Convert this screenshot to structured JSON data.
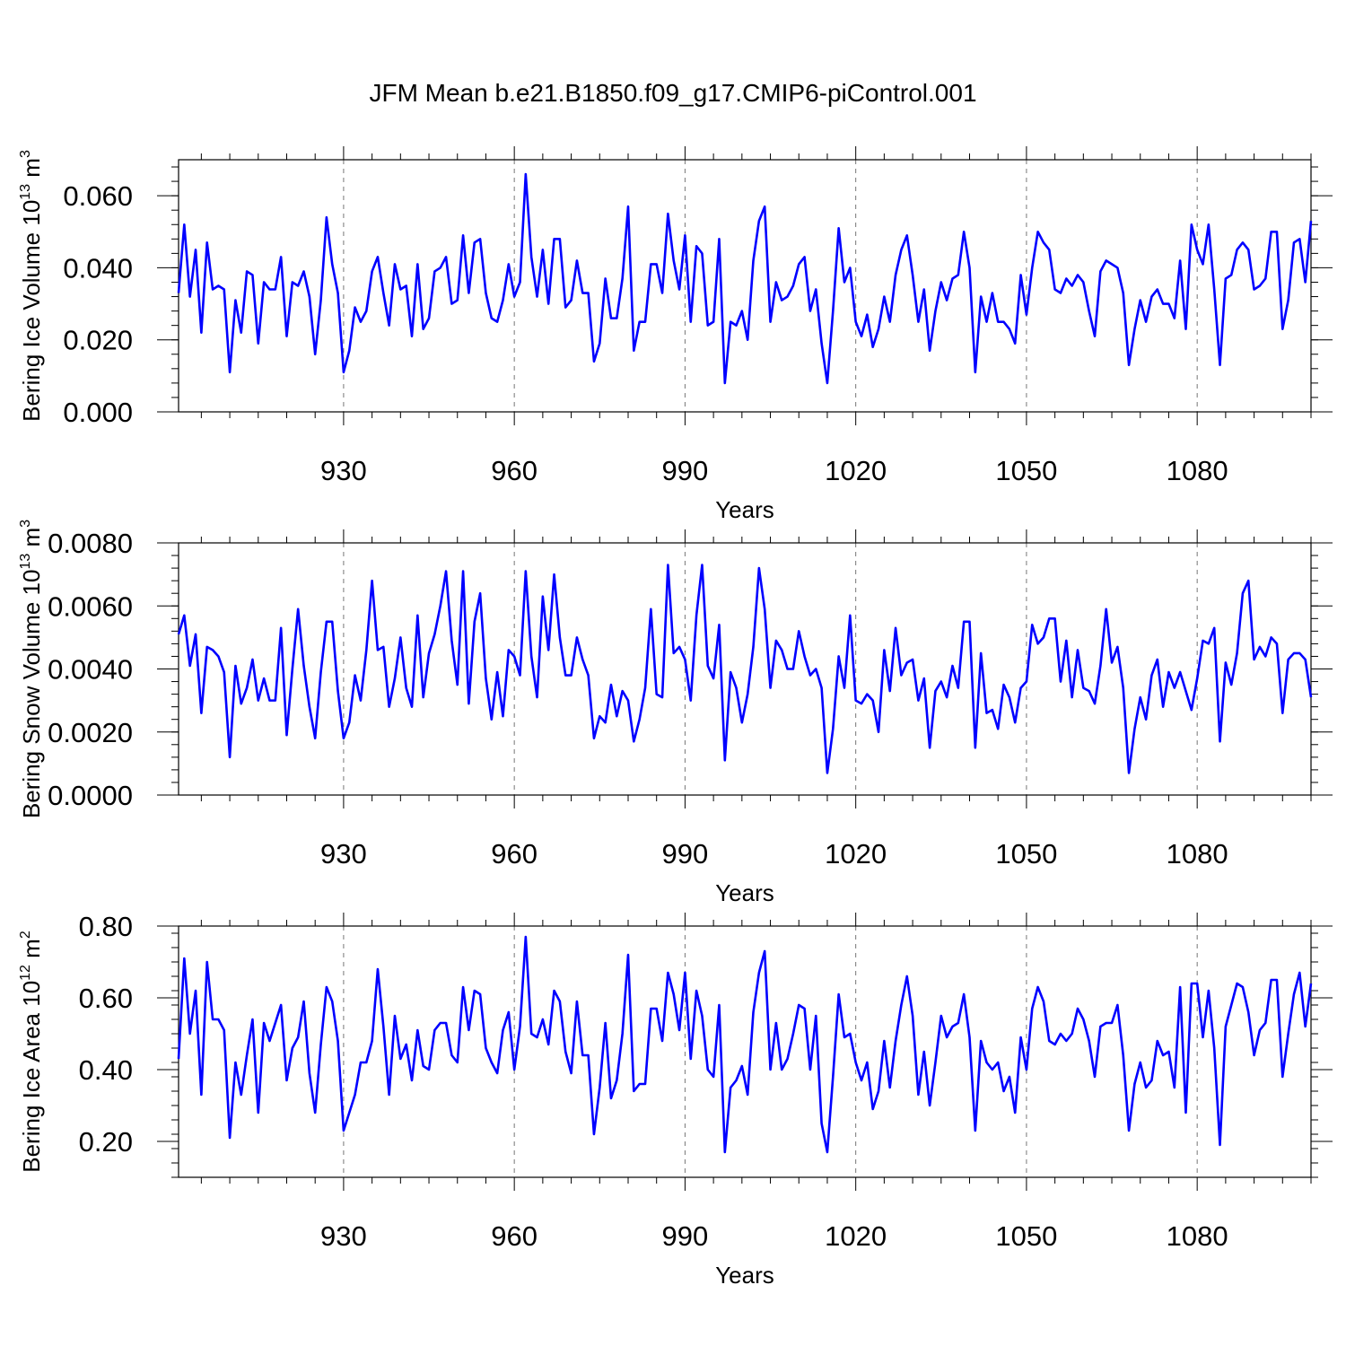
{
  "title": "JFM Mean b.e21.B1850.f09_g17.CMIP6-piControl.001",
  "line_color": "#0000ff",
  "chart_data": [
    {
      "type": "line",
      "ylabel": "Bering Ice Volume 10",
      "ylabel_exp": "13",
      "ylabel_unit": " m",
      "ylabel_unit_exp": "3",
      "xlabel": "Years",
      "xlim": [
        901,
        1100
      ],
      "ylim": [
        0,
        0.07
      ],
      "xticks": [
        930,
        960,
        990,
        1020,
        1050,
        1080
      ],
      "xtick_labels": [
        "930",
        "960",
        "990",
        "1020",
        "1050",
        "1080"
      ],
      "yticks": [
        0,
        0.02,
        0.04,
        0.06
      ],
      "ytick_labels": [
        "0.000",
        "0.020",
        "0.040",
        "0.060"
      ],
      "x_start": 901,
      "values": [
        0.033,
        0.052,
        0.032,
        0.045,
        0.022,
        0.047,
        0.034,
        0.035,
        0.034,
        0.011,
        0.031,
        0.022,
        0.039,
        0.038,
        0.019,
        0.036,
        0.034,
        0.034,
        0.043,
        0.021,
        0.036,
        0.035,
        0.039,
        0.032,
        0.016,
        0.031,
        0.054,
        0.041,
        0.033,
        0.011,
        0.017,
        0.029,
        0.025,
        0.028,
        0.039,
        0.043,
        0.033,
        0.024,
        0.041,
        0.034,
        0.035,
        0.021,
        0.041,
        0.023,
        0.026,
        0.039,
        0.04,
        0.043,
        0.03,
        0.031,
        0.049,
        0.033,
        0.047,
        0.048,
        0.033,
        0.026,
        0.025,
        0.031,
        0.041,
        0.032,
        0.036,
        0.066,
        0.043,
        0.032,
        0.045,
        0.03,
        0.048,
        0.048,
        0.029,
        0.031,
        0.042,
        0.033,
        0.033,
        0.014,
        0.019,
        0.037,
        0.026,
        0.026,
        0.037,
        0.057,
        0.017,
        0.025,
        0.025,
        0.041,
        0.041,
        0.033,
        0.055,
        0.042,
        0.034,
        0.049,
        0.025,
        0.046,
        0.044,
        0.024,
        0.025,
        0.048,
        0.008,
        0.025,
        0.024,
        0.028,
        0.02,
        0.042,
        0.053,
        0.057,
        0.025,
        0.036,
        0.031,
        0.032,
        0.035,
        0.041,
        0.043,
        0.028,
        0.034,
        0.019,
        0.008,
        0.028,
        0.051,
        0.036,
        0.04,
        0.025,
        0.021,
        0.027,
        0.018,
        0.023,
        0.032,
        0.025,
        0.038,
        0.045,
        0.049,
        0.038,
        0.025,
        0.034,
        0.017,
        0.028,
        0.036,
        0.031,
        0.037,
        0.038,
        0.05,
        0.04,
        0.011,
        0.032,
        0.025,
        0.033,
        0.025,
        0.025,
        0.023,
        0.019,
        0.038,
        0.027,
        0.04,
        0.05,
        0.047,
        0.045,
        0.034,
        0.033,
        0.037,
        0.035,
        0.038,
        0.036,
        0.028,
        0.021,
        0.039,
        0.042,
        0.041,
        0.04,
        0.033,
        0.013,
        0.023,
        0.031,
        0.025,
        0.032,
        0.034,
        0.03,
        0.03,
        0.026,
        0.042,
        0.023,
        0.052,
        0.045,
        0.041,
        0.052,
        0.034,
        0.013,
        0.037,
        0.038,
        0.045,
        0.047,
        0.045,
        0.034,
        0.035,
        0.037,
        0.05,
        0.05,
        0.023,
        0.031,
        0.047,
        0.048,
        0.036,
        0.053
      ]
    },
    {
      "type": "line",
      "ylabel": "Bering Snow Volume 10",
      "ylabel_exp": "13",
      "ylabel_unit": " m",
      "ylabel_unit_exp": "3",
      "xlabel": "Years",
      "xlim": [
        901,
        1100
      ],
      "ylim": [
        0,
        0.008
      ],
      "xticks": [
        930,
        960,
        990,
        1020,
        1050,
        1080
      ],
      "xtick_labels": [
        "930",
        "960",
        "990",
        "1020",
        "1050",
        "1080"
      ],
      "yticks": [
        0,
        0.002,
        0.004,
        0.006,
        0.008
      ],
      "ytick_labels": [
        "0.0000",
        "0.0020",
        "0.0040",
        "0.0060",
        "0.0080"
      ],
      "x_start": 901,
      "values": [
        0.0051,
        0.0057,
        0.0041,
        0.0051,
        0.0026,
        0.0047,
        0.0046,
        0.0044,
        0.0039,
        0.0012,
        0.0041,
        0.0029,
        0.0034,
        0.0043,
        0.003,
        0.0037,
        0.003,
        0.003,
        0.0053,
        0.0019,
        0.004,
        0.0059,
        0.0041,
        0.0028,
        0.0018,
        0.0039,
        0.0055,
        0.0055,
        0.0033,
        0.0018,
        0.0023,
        0.0038,
        0.003,
        0.0046,
        0.0068,
        0.0046,
        0.0047,
        0.0028,
        0.0037,
        0.005,
        0.0034,
        0.0028,
        0.0057,
        0.0031,
        0.0045,
        0.0051,
        0.006,
        0.0071,
        0.0049,
        0.0035,
        0.0071,
        0.0029,
        0.0055,
        0.0064,
        0.0037,
        0.0024,
        0.0039,
        0.0025,
        0.0046,
        0.0044,
        0.0038,
        0.0071,
        0.0044,
        0.0031,
        0.0063,
        0.0046,
        0.007,
        0.005,
        0.0038,
        0.0038,
        0.005,
        0.0043,
        0.0038,
        0.0018,
        0.0025,
        0.0023,
        0.0035,
        0.0025,
        0.0033,
        0.003,
        0.0017,
        0.0024,
        0.0034,
        0.0059,
        0.0032,
        0.0031,
        0.0073,
        0.0045,
        0.0047,
        0.0043,
        0.003,
        0.0057,
        0.0073,
        0.0041,
        0.0037,
        0.0054,
        0.0011,
        0.0039,
        0.0034,
        0.0023,
        0.0032,
        0.0047,
        0.0072,
        0.0059,
        0.0034,
        0.0049,
        0.0046,
        0.004,
        0.004,
        0.0052,
        0.0044,
        0.0038,
        0.004,
        0.0034,
        0.0007,
        0.0021,
        0.0044,
        0.0034,
        0.0057,
        0.003,
        0.0029,
        0.0032,
        0.003,
        0.002,
        0.0046,
        0.0033,
        0.0053,
        0.0038,
        0.0042,
        0.0043,
        0.003,
        0.0037,
        0.0015,
        0.0033,
        0.0036,
        0.0031,
        0.0041,
        0.0034,
        0.0055,
        0.0055,
        0.0015,
        0.0045,
        0.0026,
        0.0027,
        0.0021,
        0.0035,
        0.0031,
        0.0023,
        0.0034,
        0.0036,
        0.0054,
        0.0048,
        0.005,
        0.0056,
        0.0056,
        0.0036,
        0.0049,
        0.0031,
        0.0046,
        0.0034,
        0.0033,
        0.0029,
        0.0041,
        0.0059,
        0.0042,
        0.0047,
        0.0034,
        0.0007,
        0.0021,
        0.0031,
        0.0024,
        0.0038,
        0.0043,
        0.0028,
        0.0039,
        0.0034,
        0.0039,
        0.0033,
        0.0027,
        0.0037,
        0.0049,
        0.0048,
        0.0053,
        0.0017,
        0.0042,
        0.0035,
        0.0045,
        0.0064,
        0.0068,
        0.0043,
        0.0047,
        0.0044,
        0.005,
        0.0048,
        0.0026,
        0.0043,
        0.0045,
        0.0045,
        0.0043,
        0.0031
      ]
    },
    {
      "type": "line",
      "ylabel": "Bering Ice Area 10",
      "ylabel_exp": "12",
      "ylabel_unit": " m",
      "ylabel_unit_exp": "2",
      "xlabel": "Years",
      "xlim": [
        901,
        1100
      ],
      "ylim": [
        0.1,
        0.8
      ],
      "xticks": [
        930,
        960,
        990,
        1020,
        1050,
        1080
      ],
      "xtick_labels": [
        "930",
        "960",
        "990",
        "1020",
        "1050",
        "1080"
      ],
      "yticks": [
        0.2,
        0.4,
        0.6,
        0.8
      ],
      "ytick_labels": [
        "0.20",
        "0.40",
        "0.60",
        "0.80"
      ],
      "x_start": 901,
      "values": [
        0.43,
        0.71,
        0.5,
        0.62,
        0.33,
        0.7,
        0.54,
        0.54,
        0.51,
        0.21,
        0.42,
        0.33,
        0.44,
        0.54,
        0.28,
        0.53,
        0.48,
        0.53,
        0.58,
        0.37,
        0.46,
        0.49,
        0.59,
        0.39,
        0.28,
        0.47,
        0.63,
        0.59,
        0.48,
        0.23,
        0.28,
        0.33,
        0.42,
        0.42,
        0.48,
        0.68,
        0.52,
        0.33,
        0.55,
        0.43,
        0.47,
        0.37,
        0.51,
        0.41,
        0.4,
        0.51,
        0.53,
        0.53,
        0.44,
        0.42,
        0.63,
        0.51,
        0.62,
        0.61,
        0.46,
        0.42,
        0.39,
        0.51,
        0.56,
        0.4,
        0.52,
        0.77,
        0.5,
        0.49,
        0.54,
        0.47,
        0.62,
        0.59,
        0.45,
        0.39,
        0.59,
        0.44,
        0.44,
        0.22,
        0.35,
        0.53,
        0.32,
        0.37,
        0.5,
        0.72,
        0.34,
        0.36,
        0.36,
        0.57,
        0.57,
        0.48,
        0.67,
        0.61,
        0.51,
        0.67,
        0.43,
        0.62,
        0.55,
        0.4,
        0.38,
        0.58,
        0.17,
        0.35,
        0.37,
        0.41,
        0.33,
        0.56,
        0.67,
        0.73,
        0.4,
        0.53,
        0.4,
        0.43,
        0.5,
        0.58,
        0.57,
        0.4,
        0.55,
        0.25,
        0.17,
        0.38,
        0.61,
        0.49,
        0.5,
        0.42,
        0.37,
        0.42,
        0.29,
        0.34,
        0.48,
        0.35,
        0.48,
        0.58,
        0.66,
        0.55,
        0.33,
        0.45,
        0.3,
        0.42,
        0.55,
        0.49,
        0.52,
        0.53,
        0.61,
        0.49,
        0.23,
        0.48,
        0.42,
        0.4,
        0.42,
        0.34,
        0.38,
        0.28,
        0.49,
        0.4,
        0.57,
        0.63,
        0.59,
        0.48,
        0.47,
        0.5,
        0.48,
        0.5,
        0.57,
        0.54,
        0.48,
        0.38,
        0.52,
        0.53,
        0.53,
        0.58,
        0.44,
        0.23,
        0.36,
        0.42,
        0.35,
        0.37,
        0.48,
        0.44,
        0.45,
        0.35,
        0.63,
        0.28,
        0.64,
        0.64,
        0.49,
        0.62,
        0.46,
        0.19,
        0.52,
        0.58,
        0.64,
        0.63,
        0.56,
        0.44,
        0.51,
        0.53,
        0.65,
        0.65,
        0.38,
        0.5,
        0.61,
        0.67,
        0.52,
        0.64
      ]
    }
  ]
}
